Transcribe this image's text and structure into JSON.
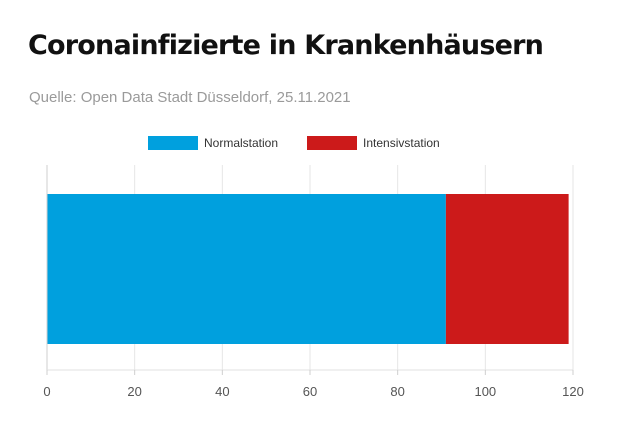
{
  "header": {
    "title": "Coronainfizierte in Krankenhäusern",
    "subtitle": "Quelle: Open Data Stadt Düsseldorf, 25.11.2021"
  },
  "legend": [
    {
      "label": "Normalstation",
      "color": "#00a0de"
    },
    {
      "label": "Intensivstation",
      "color": "#cc1a1a"
    }
  ],
  "chart_data": {
    "type": "bar",
    "orientation": "horizontal",
    "stacked": true,
    "categories": [
      ""
    ],
    "series": [
      {
        "name": "Normalstation",
        "values": [
          91
        ],
        "color": "#00a0de"
      },
      {
        "name": "Intensivstation",
        "values": [
          28
        ],
        "color": "#cc1a1a"
      }
    ],
    "xlim": [
      0,
      120
    ],
    "x_ticks": [
      0,
      20,
      40,
      60,
      80,
      100,
      120
    ],
    "grid": true,
    "legend_position": "top"
  }
}
